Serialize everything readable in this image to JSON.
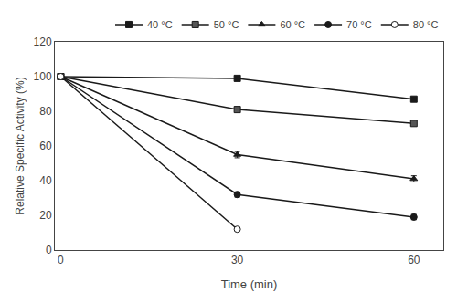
{
  "chart_data": {
    "type": "line",
    "xlabel": "Time (min)",
    "ylabel": "Relative Specific Activity (%)",
    "x": [
      0,
      30,
      60
    ],
    "xlim": [
      -1,
      65
    ],
    "xticks": [
      0,
      30,
      60
    ],
    "ylim": [
      0,
      120
    ],
    "yticks": [
      0,
      20,
      40,
      60,
      80,
      100,
      120
    ],
    "grid": false,
    "legend": "upper right",
    "color": "#1a1a1a",
    "series": [
      {
        "name": "40 °C",
        "values": [
          100,
          99,
          87
        ],
        "yerr": [
          0,
          1.2,
          1.2
        ],
        "marker": "square",
        "color": "#1a1a1a"
      },
      {
        "name": "50 °C",
        "values": [
          100,
          81,
          73
        ],
        "yerr": [
          0,
          1.2,
          1.2
        ],
        "marker": "square",
        "color": "#555555"
      },
      {
        "name": "60 °C",
        "values": [
          100,
          55,
          41
        ],
        "yerr": [
          0,
          1.8,
          1.8
        ],
        "marker": "triangle-up",
        "color": "#1a1a1a"
      },
      {
        "name": "70 °C",
        "values": [
          100,
          32,
          19
        ],
        "yerr": [
          0,
          1.5,
          1.5
        ],
        "marker": "circle",
        "color": "#1a1a1a"
      },
      {
        "name": "80 °C",
        "values": [
          100,
          12,
          null
        ],
        "yerr": [
          0,
          1.0,
          null
        ],
        "marker": "circle",
        "color": "white"
      }
    ]
  }
}
